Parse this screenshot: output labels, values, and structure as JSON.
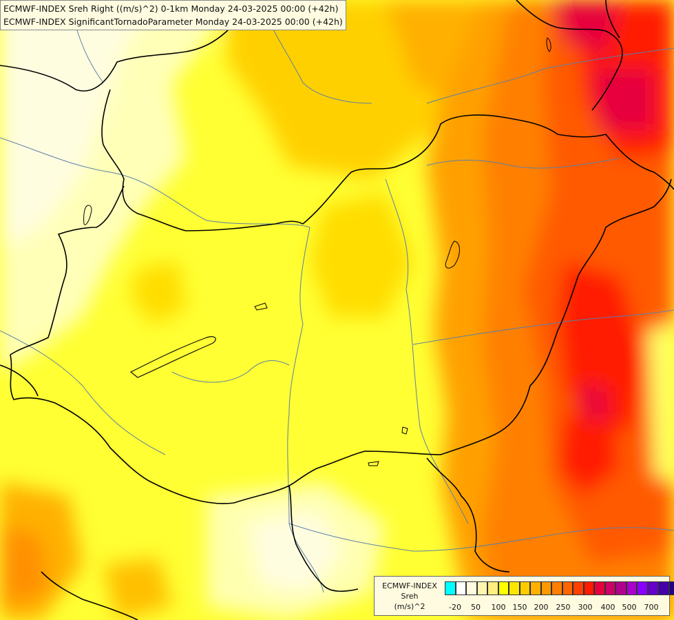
{
  "title": {
    "line1": "ECMWF-INDEX Sreh Right ((m/s)^2) 0-1km Monday 24-03-2025 00:00 (+42h)",
    "line2": "ECMWF-INDEX SignificantTornadoParameter Monday 24-03-2025 00:00 (+42h)"
  },
  "legend": {
    "source": "ECMWF-INDEX",
    "variable": "Sreh",
    "unit": "(m/s)^2",
    "colors": [
      "#00ffff",
      "#ffffff",
      "#fffbe0",
      "#fff5b0",
      "#ffee80",
      "#ffff00",
      "#ffe600",
      "#ffcc00",
      "#ffb000",
      "#ff9900",
      "#ff7f00",
      "#ff6600",
      "#ff4000",
      "#ff1a00",
      "#e6003c",
      "#cc0066",
      "#b3008c",
      "#aa00cc",
      "#8800ff",
      "#6600cc",
      "#4400aa",
      "#220088",
      "#000066"
    ],
    "tick_labels": [
      "-20",
      "50",
      "100",
      "150",
      "200",
      "250",
      "300",
      "400",
      "500",
      "700"
    ]
  }
}
